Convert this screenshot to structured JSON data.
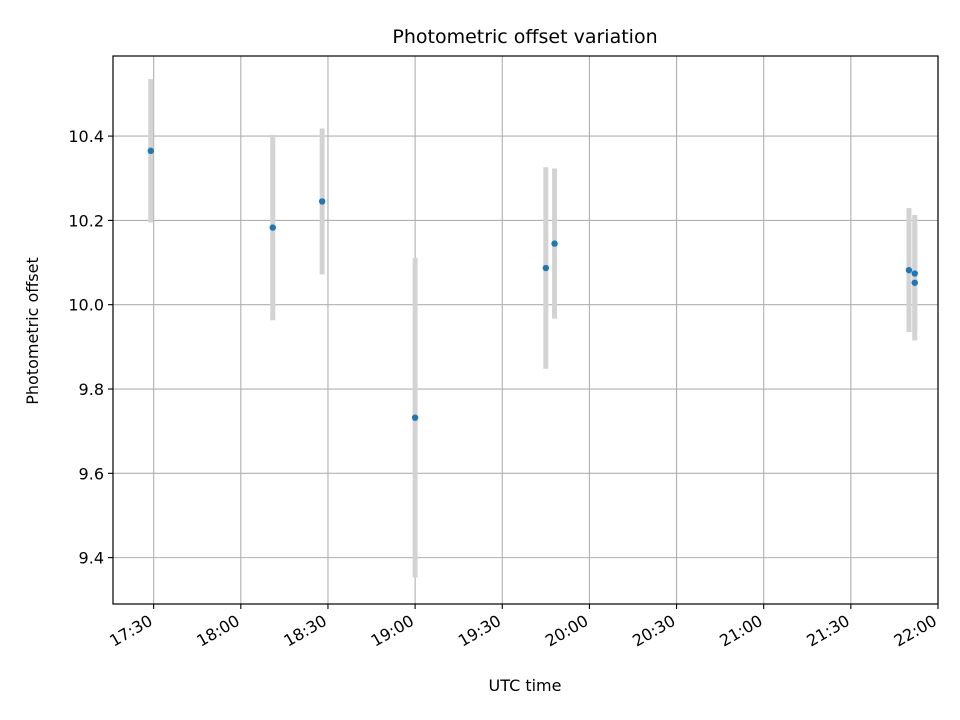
{
  "chart_data": {
    "type": "scatter",
    "title": "Photometric offset variation",
    "xlabel": "UTC time",
    "ylabel": "Photometric offset",
    "x_ticks": [
      "17:30",
      "18:00",
      "18:30",
      "19:00",
      "19:30",
      "20:00",
      "20:30",
      "21:00",
      "21:30",
      "22:00"
    ],
    "y_ticks": [
      "9.4",
      "9.6",
      "9.8",
      "10.0",
      "10.2",
      "10.4"
    ],
    "xlim": [
      "17:16",
      "22:00"
    ],
    "ylim": [
      9.29,
      10.59
    ],
    "grid": true,
    "series": [
      {
        "marker_color": "#1f77b4",
        "errorbar_color": "#d3d3d3",
        "points": [
          {
            "x": "17:29",
            "y": 10.365,
            "yerr_low": 10.195,
            "yerr_high": 10.535
          },
          {
            "x": "18:11",
            "y": 10.183,
            "yerr_low": 9.963,
            "yerr_high": 10.403
          },
          {
            "x": "18:28",
            "y": 10.245,
            "yerr_low": 10.072,
            "yerr_high": 10.418
          },
          {
            "x": "19:00",
            "y": 9.732,
            "yerr_low": 9.353,
            "yerr_high": 10.111
          },
          {
            "x": "19:45",
            "y": 10.087,
            "yerr_low": 9.848,
            "yerr_high": 10.326
          },
          {
            "x": "19:48",
            "y": 10.145,
            "yerr_low": 9.967,
            "yerr_high": 10.323
          },
          {
            "x": "21:50",
            "y": 10.082,
            "yerr_low": 9.935,
            "yerr_high": 10.229
          },
          {
            "x": "21:52",
            "y": 10.074,
            "yerr_low": 9.935,
            "yerr_high": 10.213
          },
          {
            "x": "21:52",
            "y": 10.052,
            "yerr_low": 9.915,
            "yerr_high": 10.189
          }
        ]
      }
    ]
  }
}
